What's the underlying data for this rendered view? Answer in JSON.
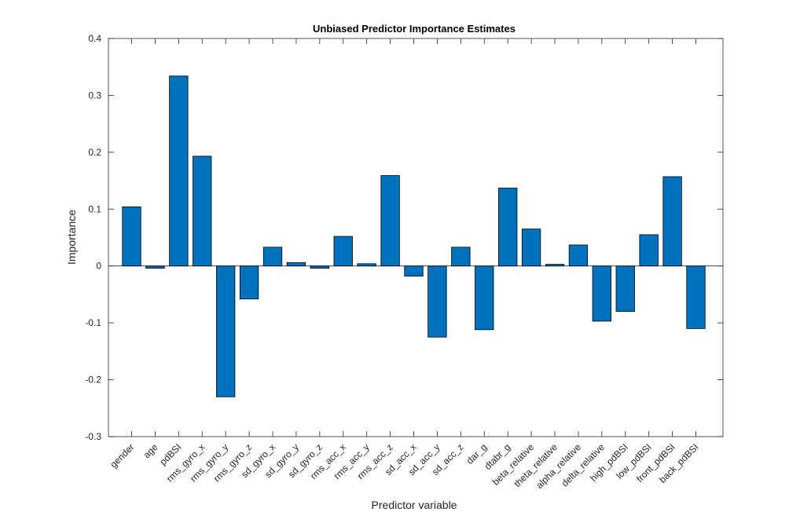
{
  "chart_data": {
    "type": "bar",
    "title": "Unbiased Predictor Importance Estimates",
    "xlabel": "Predictor variable",
    "ylabel": "Importance",
    "ylim": [
      -0.3,
      0.4
    ],
    "yticks": [
      -0.3,
      -0.2,
      -0.1,
      0,
      0.1,
      0.2,
      0.3,
      0.4
    ],
    "ytick_labels": [
      "-0.3",
      "-0.2",
      "-0.1",
      "0",
      "0.1",
      "0.2",
      "0.3",
      "0.4"
    ],
    "categories": [
      "gender",
      "age",
      "pdBSI",
      "rms_gyro_x",
      "rms_gyro_y",
      "rms_gyro_z",
      "sd_gyro_x",
      "sd_gyro_y",
      "sd_gyro_z",
      "rms_acc_x",
      "rms_acc_y",
      "rms_acc_z",
      "sd_acc_x",
      "sd_acc_y",
      "sd_acc_z",
      "dar_g",
      "dtabr_g",
      "beta_relative",
      "theta_relative",
      "alpha_relative",
      "delta_relative",
      "high_pdBSI",
      "low_pdBSI",
      "front_pdBSI",
      "back_pdBSI"
    ],
    "values": [
      0.104,
      -0.004,
      0.334,
      0.193,
      -0.23,
      -0.058,
      0.033,
      0.006,
      -0.004,
      0.052,
      0.004,
      0.159,
      -0.018,
      -0.125,
      0.033,
      -0.112,
      0.137,
      0.065,
      0.003,
      0.037,
      -0.097,
      -0.08,
      0.055,
      0.157,
      -0.11
    ],
    "bar_color": "#0072BD",
    "grid": false,
    "legend": false
  }
}
